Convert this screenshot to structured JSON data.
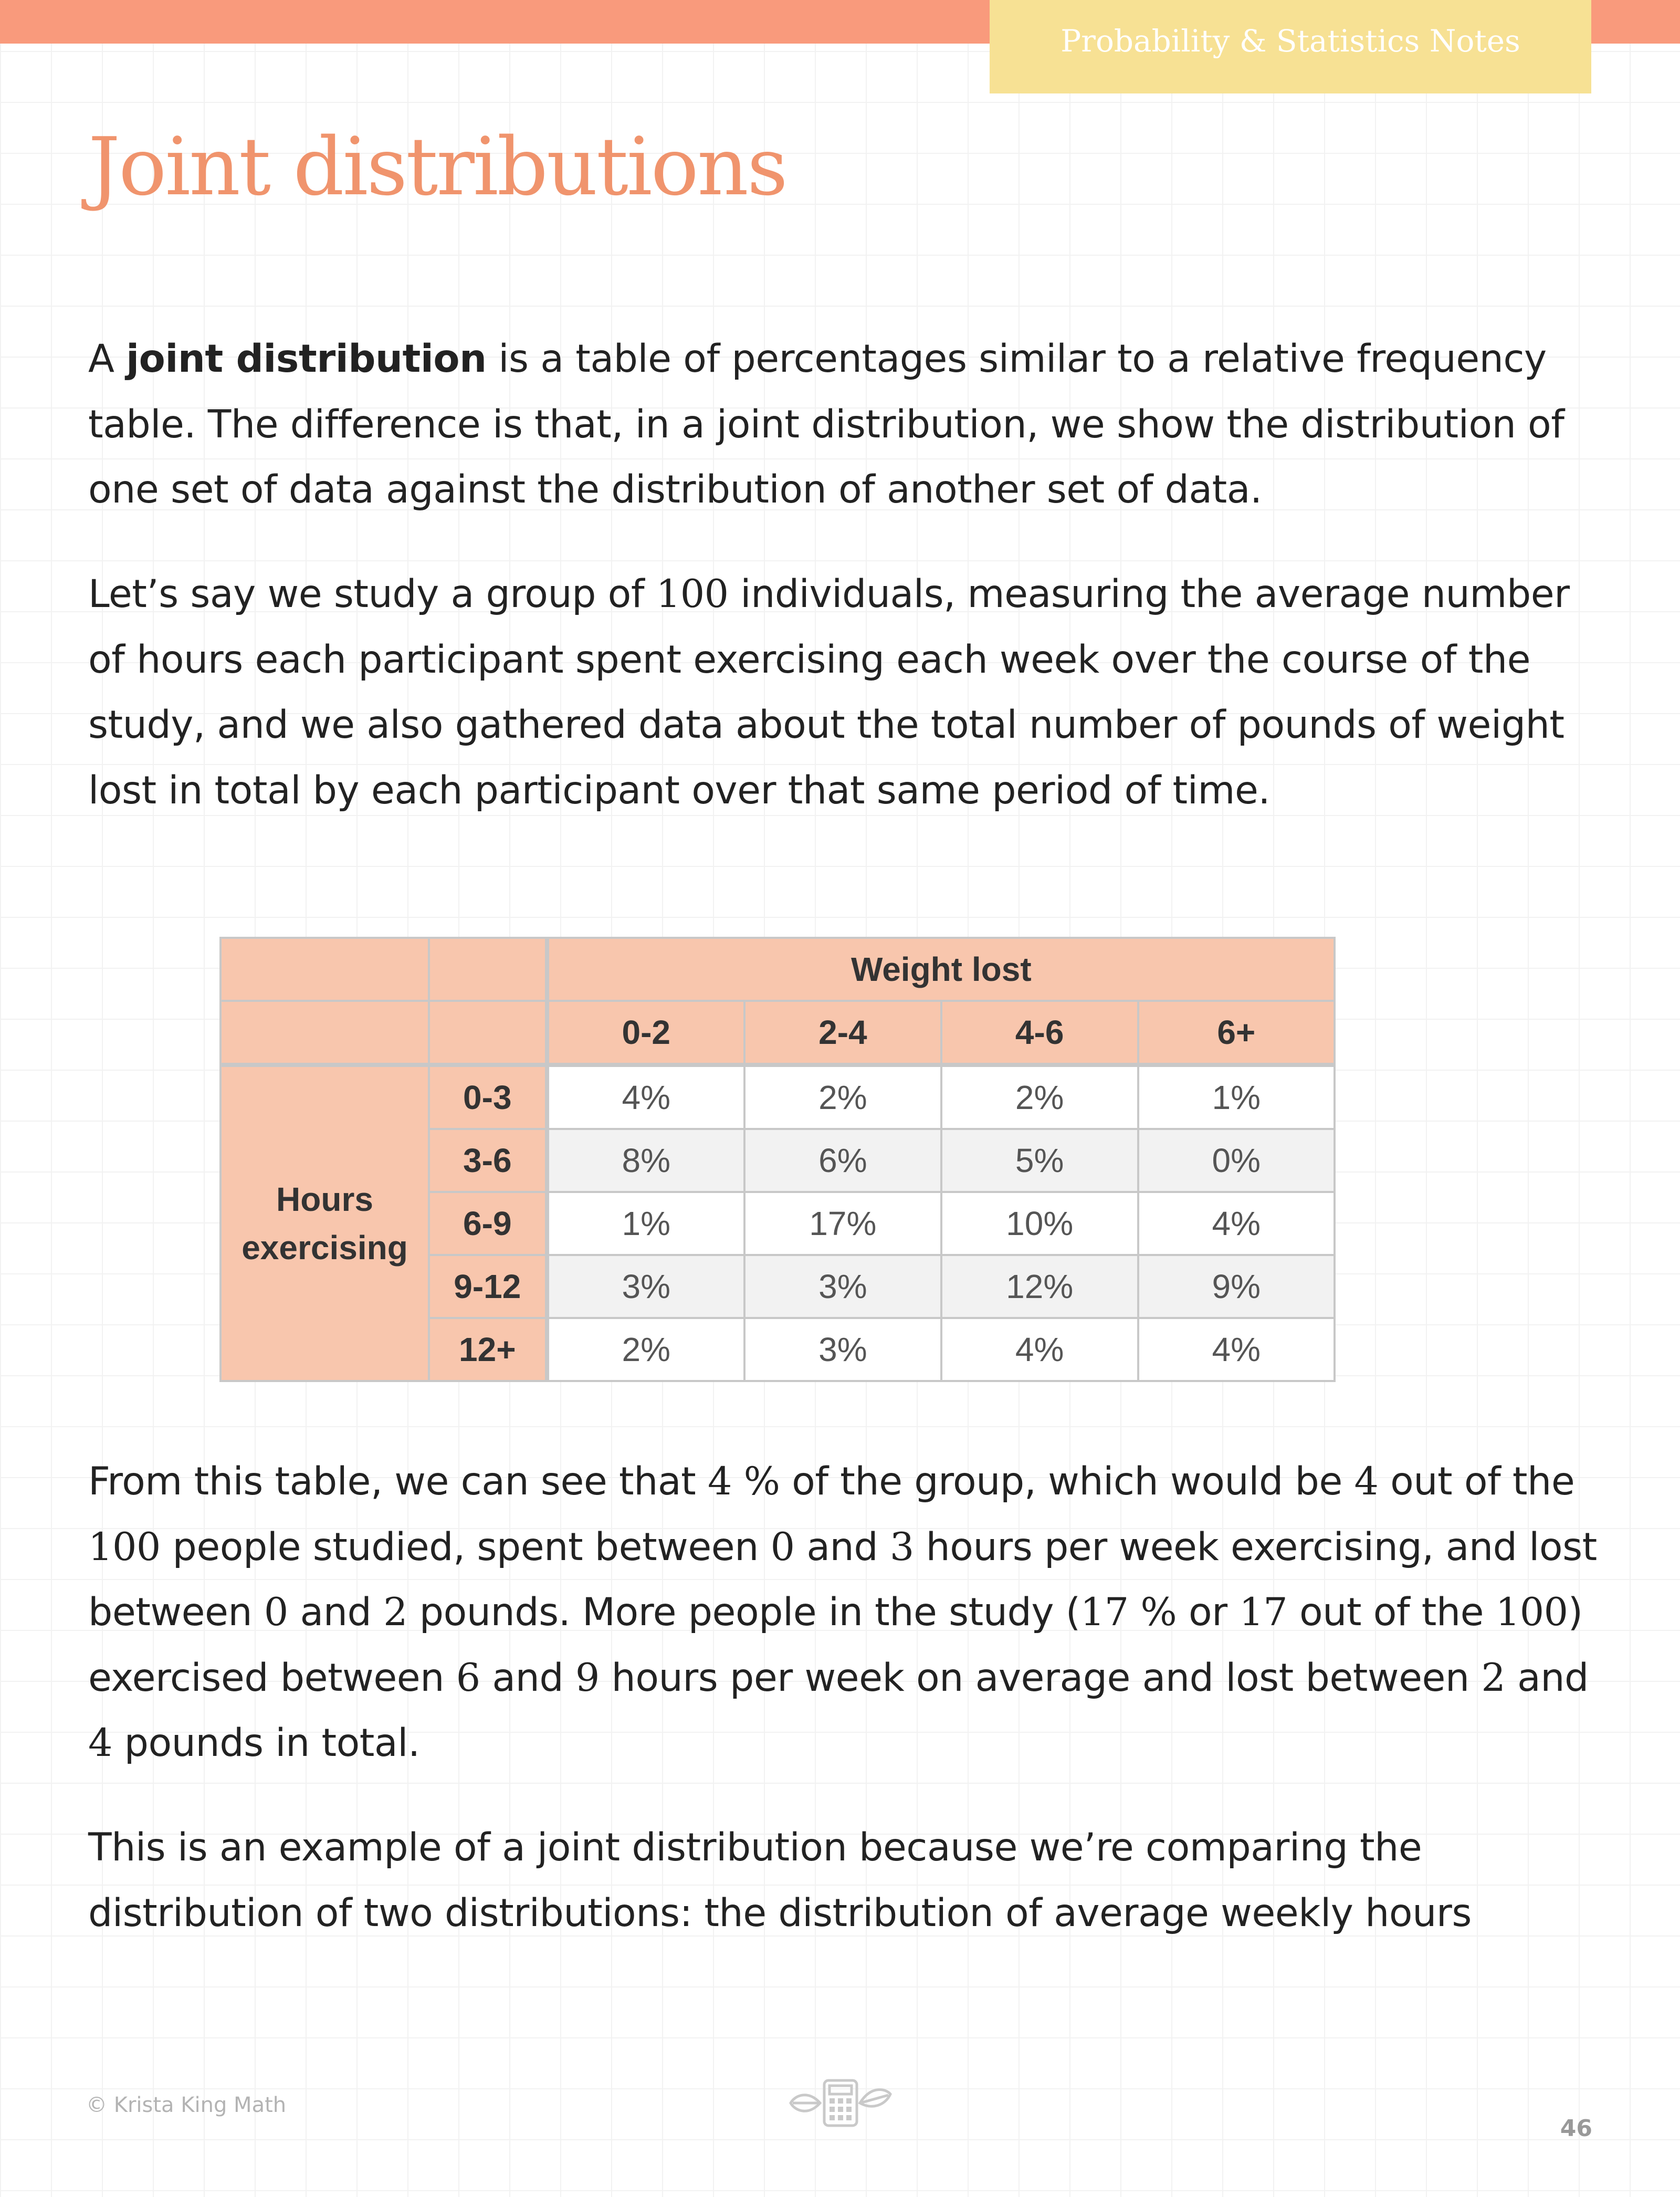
{
  "header": {
    "tab_label": "Probability & Statistics Notes"
  },
  "title": "Joint distributions",
  "para1": {
    "before": "A ",
    "bold": "joint distribution",
    "after": " is a table of percentages similar to a relative frequency table. The difference is that, in a joint distribution, we show the distribution of one set of data against the distribution of another set of data."
  },
  "para2": {
    "t1": "Let’s say we study a group of ",
    "n1": "100",
    "t2": " individuals, measuring the average number of hours each participant spent exercising each week over the course of the study, and we also gathered data about the total number of pounds of weight lost in total by each participant over that same period of time."
  },
  "table": {
    "col_group_label": "Weight lost",
    "row_group_label": "Hours exercising",
    "col_headers": [
      "0-2",
      "2-4",
      "4-6",
      "6+"
    ],
    "rows": [
      {
        "label": "0-3",
        "values": [
          "4%",
          "2%",
          "2%",
          "1%"
        ]
      },
      {
        "label": "3-6",
        "values": [
          "8%",
          "6%",
          "5%",
          "0%"
        ]
      },
      {
        "label": "6-9",
        "values": [
          "1%",
          "17%",
          "10%",
          "4%"
        ]
      },
      {
        "label": "9-12",
        "values": [
          "3%",
          "3%",
          "12%",
          "9%"
        ]
      },
      {
        "label": "12+",
        "values": [
          "2%",
          "3%",
          "4%",
          "4%"
        ]
      }
    ]
  },
  "para3": {
    "t1": "From this table, we can see that ",
    "n1": "4 %",
    "t2": " of the group, which would be ",
    "n2": "4",
    "t3": " out of the ",
    "n3": "100",
    "t4": " people studied, spent between ",
    "n4": "0",
    "t5": " and ",
    "n5": "3",
    "t6": " hours per week exercising, and lost between ",
    "n6": "0",
    "t7": " and ",
    "n7": "2",
    "t8": " pounds. More people in the study (",
    "n8": "17 %",
    "t9": " or ",
    "n9": "17",
    "t10": " out of the ",
    "n10": "100",
    "t11": ") exercised between ",
    "n11": "6",
    "t12": " and ",
    "n12": "9",
    "t13": " hours per week on average and lost between ",
    "n13": "2",
    "t14": " and ",
    "n14": "4",
    "t15": " pounds in total."
  },
  "para4": "This is an example of a joint distribution because we’re comparing the distribution of two distributions: the distribution of average weekly hours",
  "footer": {
    "copyright": "© Krista King Math",
    "logo_icon": "calculator-logo-icon",
    "page_number": "46"
  }
}
